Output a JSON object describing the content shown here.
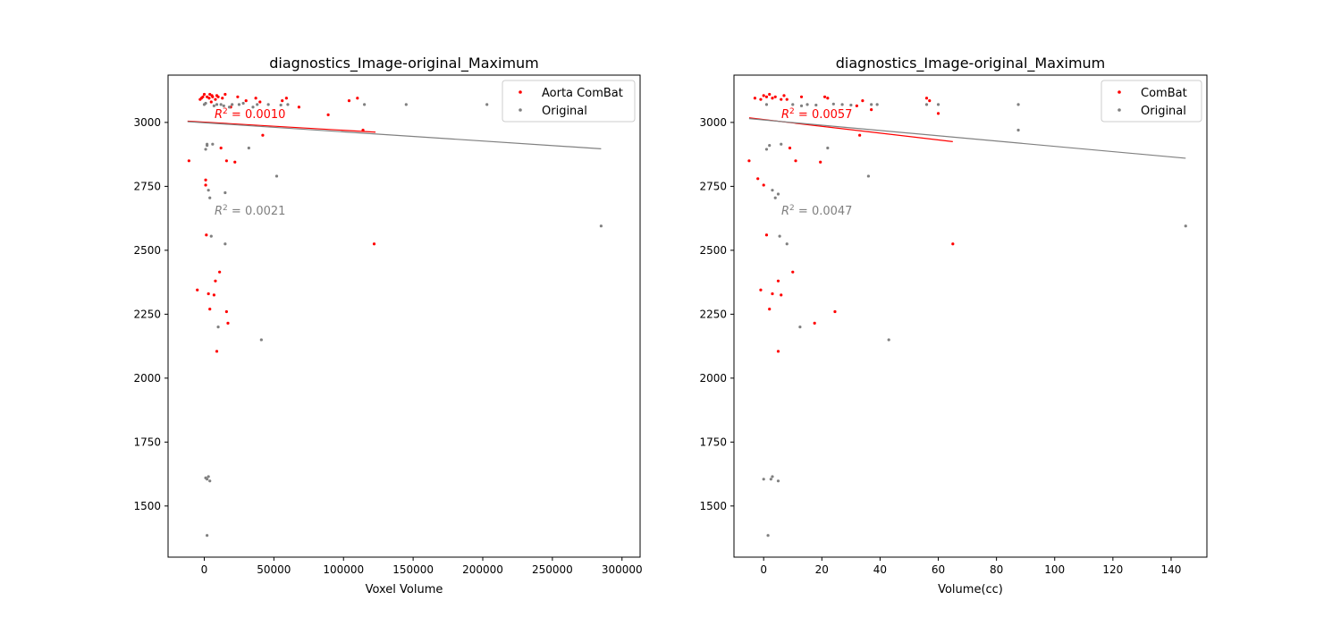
{
  "chart_data": [
    {
      "type": "scatter",
      "title": "diagnostics_Image-original_Maximum",
      "xlabel": "Voxel Volume",
      "ylabel": "",
      "xlim": [
        -26000,
        313000
      ],
      "ylim": [
        1300,
        3185
      ],
      "xticks": [
        0,
        50000,
        100000,
        150000,
        200000,
        250000,
        300000
      ],
      "xtick_labels": [
        "0",
        "50000",
        "100000",
        "150000",
        "200000",
        "250000",
        "300000"
      ],
      "yticks": [
        1500,
        1750,
        2000,
        2250,
        2500,
        2750,
        3000
      ],
      "ytick_labels": [
        "1500",
        "1750",
        "2000",
        "2250",
        "2500",
        "2750",
        "3000"
      ],
      "grid": false,
      "legend_position": "top-right",
      "series": [
        {
          "name": "Aorta ComBat",
          "color": "#ff0000",
          "points": [
            [
              -11000,
              2850
            ],
            [
              -5000,
              2345
            ],
            [
              -3000,
              3090
            ],
            [
              -2000,
              3095
            ],
            [
              0,
              3110
            ],
            [
              1000,
              2775
            ],
            [
              1000,
              2755
            ],
            [
              1500,
              2560
            ],
            [
              3000,
              2330
            ],
            [
              4000,
              2270
            ],
            [
              5000,
              3080
            ],
            [
              6000,
              3100
            ],
            [
              7000,
              2325
            ],
            [
              8000,
              2380
            ],
            [
              9000,
              2105
            ],
            [
              11000,
              2415
            ],
            [
              12000,
              2900
            ],
            [
              15000,
              3110
            ],
            [
              16000,
              2260
            ],
            [
              16000,
              2850
            ],
            [
              17000,
              2215
            ],
            [
              19000,
              3060
            ],
            [
              22000,
              2845
            ],
            [
              24000,
              3100
            ],
            [
              30000,
              3085
            ],
            [
              37000,
              3095
            ],
            [
              40000,
              3080
            ],
            [
              42000,
              2950
            ],
            [
              56000,
              3085
            ],
            [
              59000,
              3095
            ],
            [
              68000,
              3060
            ],
            [
              89000,
              3030
            ],
            [
              104000,
              3085
            ],
            [
              110000,
              3095
            ],
            [
              114000,
              2970
            ],
            [
              122000,
              2525
            ],
            [
              2000,
              3100
            ],
            [
              3500,
              3095
            ],
            [
              5500,
              3105
            ],
            [
              8000,
              3090
            ],
            [
              10000,
              3100
            ],
            [
              13000,
              3095
            ],
            [
              -1000,
              3100
            ],
            [
              4000,
              3110
            ],
            [
              9000,
              3105
            ]
          ],
          "fit_r2": "$R^2 = 0.0010$",
          "fit_line": [
            [
              -12000,
              3005
            ],
            [
              123000,
              2962
            ]
          ]
        },
        {
          "name": "Original",
          "color": "#808080",
          "points": [
            [
              0,
              3070
            ],
            [
              1000,
              3075
            ],
            [
              1000,
              2895
            ],
            [
              2000,
              2910
            ],
            [
              2000,
              2915
            ],
            [
              3000,
              2735
            ],
            [
              4000,
              2705
            ],
            [
              5000,
              2555
            ],
            [
              6000,
              2915
            ],
            [
              10000,
              2200
            ],
            [
              12000,
              3070
            ],
            [
              14000,
              3065
            ],
            [
              15000,
              2525
            ],
            [
              15000,
              2725
            ],
            [
              20000,
              3070
            ],
            [
              25000,
              3070
            ],
            [
              32000,
              2900
            ],
            [
              35000,
              3060
            ],
            [
              41000,
              2150
            ],
            [
              46000,
              3070
            ],
            [
              52000,
              2790
            ],
            [
              60000,
              3070
            ],
            [
              115000,
              3070
            ],
            [
              145000,
              3070
            ],
            [
              203000,
              3070
            ],
            [
              285000,
              2595
            ],
            [
              3000,
              1615
            ],
            [
              2000,
              1605
            ],
            [
              1000,
              1610
            ],
            [
              4000,
              1598
            ],
            [
              2000,
              1385
            ],
            [
              7000,
              3065
            ],
            [
              9000,
              3070
            ],
            [
              18000,
              3060
            ],
            [
              28000,
              3075
            ],
            [
              38000,
              3070
            ],
            [
              55000,
              3068
            ]
          ],
          "fit_r2": "$R^2 = 0.0021$",
          "fit_line": [
            [
              -12000,
              3003
            ],
            [
              285000,
              2897
            ]
          ]
        }
      ]
    },
    {
      "type": "scatter",
      "title": "diagnostics_Image-original_Maximum",
      "xlabel": "Volume(cc)",
      "ylabel": "",
      "xlim": [
        -10.2,
        152.3
      ],
      "ylim": [
        1300,
        3185
      ],
      "xticks": [
        0,
        20,
        40,
        60,
        80,
        100,
        120,
        140
      ],
      "xtick_labels": [
        "0",
        "20",
        "40",
        "60",
        "80",
        "100",
        "120",
        "140"
      ],
      "yticks": [
        1500,
        1750,
        2000,
        2250,
        2500,
        2750,
        3000
      ],
      "ytick_labels": [
        "1500",
        "1750",
        "2000",
        "2250",
        "2500",
        "2750",
        "3000"
      ],
      "grid": false,
      "legend_position": "top-right",
      "series": [
        {
          "name": "ComBat",
          "color": "#ff0000",
          "points": [
            [
              -5,
              2850
            ],
            [
              -2,
              2780
            ],
            [
              -1,
              2345
            ],
            [
              0,
              2755
            ],
            [
              1,
              2560
            ],
            [
              2,
              2270
            ],
            [
              3,
              2330
            ],
            [
              5,
              2105
            ],
            [
              5,
              2380
            ],
            [
              6,
              2325
            ],
            [
              8,
              3090
            ],
            [
              9,
              2900
            ],
            [
              10,
              2415
            ],
            [
              11,
              2850
            ],
            [
              13,
              3100
            ],
            [
              17.5,
              2215
            ],
            [
              19.5,
              2845
            ],
            [
              21,
              3100
            ],
            [
              22,
              3095
            ],
            [
              24.5,
              2260
            ],
            [
              32,
              3065
            ],
            [
              33,
              2950
            ],
            [
              34,
              3085
            ],
            [
              37,
              3050
            ],
            [
              56,
              3095
            ],
            [
              57,
              3085
            ],
            [
              60,
              3035
            ],
            [
              65,
              2525
            ],
            [
              -3,
              3095
            ],
            [
              -1,
              3090
            ],
            [
              0,
              3105
            ],
            [
              1,
              3100
            ],
            [
              2,
              3110
            ],
            [
              3,
              3095
            ],
            [
              4,
              3100
            ],
            [
              6,
              3090
            ],
            [
              7,
              3105
            ]
          ],
          "fit_r2": "$R^2 = 0.0057$",
          "fit_line": [
            [
              -5,
              3018
            ],
            [
              65,
              2925
            ]
          ]
        },
        {
          "name": "Original",
          "color": "#808080",
          "points": [
            [
              0,
              1605
            ],
            [
              1,
              3070
            ],
            [
              1,
              2895
            ],
            [
              1.5,
              1385
            ],
            [
              2,
              2910
            ],
            [
              2.5,
              1605
            ],
            [
              3,
              2735
            ],
            [
              3,
              1615
            ],
            [
              4,
              2705
            ],
            [
              5,
              2720
            ],
            [
              5,
              1598
            ],
            [
              5.5,
              2555
            ],
            [
              6,
              2915
            ],
            [
              8,
              2525
            ],
            [
              10,
              3070
            ],
            [
              12.5,
              2200
            ],
            [
              13,
              3065
            ],
            [
              22,
              2900
            ],
            [
              27,
              3070
            ],
            [
              36,
              2790
            ],
            [
              37,
              3070
            ],
            [
              39,
              3070
            ],
            [
              43,
              2150
            ],
            [
              56,
              3070
            ],
            [
              60,
              3070
            ],
            [
              87.5,
              3070
            ],
            [
              87.5,
              2970
            ],
            [
              145,
              2595
            ],
            [
              15,
              3070
            ],
            [
              18,
              3068
            ],
            [
              24,
              3072
            ],
            [
              30,
              3068
            ]
          ],
          "fit_r2": "$R^2 = 0.0047$",
          "fit_line": [
            [
              -5,
              3015
            ],
            [
              145,
              2860
            ]
          ]
        }
      ]
    }
  ]
}
